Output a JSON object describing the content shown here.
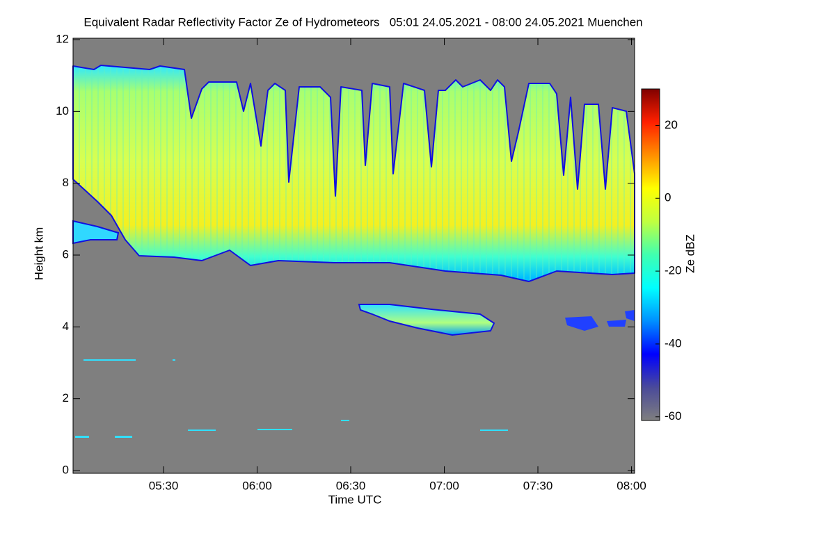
{
  "chart_data": {
    "type": "heatmap",
    "title": "Equivalent Radar Reflectivity Factor Ze of Hydrometeors   05:01 24.05.2021 - 08:00 24.05.2021 Muenchen",
    "xlabel": "Time UTC",
    "ylabel": "Height km",
    "xlim": [
      301,
      481
    ],
    "xticks": [
      {
        "value": 330,
        "label": "05:30"
      },
      {
        "value": 360,
        "label": "06:00"
      },
      {
        "value": 390,
        "label": "06:30"
      },
      {
        "value": 420,
        "label": "07:00"
      },
      {
        "value": 450,
        "label": "07:30"
      },
      {
        "value": 480,
        "label": "08:00"
      }
    ],
    "ylim": [
      0,
      12
    ],
    "yticks": [
      0,
      2,
      4,
      6,
      8,
      10,
      12
    ],
    "colorbar": {
      "label": "Ze dBZ",
      "lim": [
        -61,
        30
      ],
      "ticks": [
        -60,
        -40,
        -20,
        0,
        20
      ],
      "colors": [
        "#7f7f7f",
        "#4a4a9a",
        "#0000ff",
        "#0090ff",
        "#00ffff",
        "#40ffb0",
        "#c0ff40",
        "#ffff00",
        "#ff9000",
        "#ff2000",
        "#800000"
      ]
    }
  }
}
